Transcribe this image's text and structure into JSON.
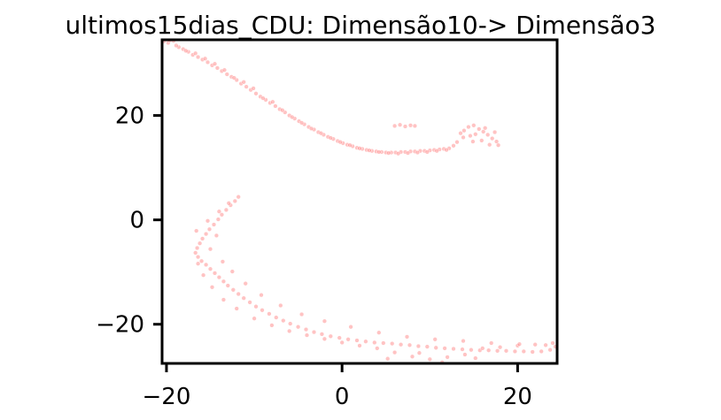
{
  "chart_data": {
    "type": "scatter",
    "title": "ultimos15dias_CDU: Dimensão10-> Dimensão3",
    "xlabel": "",
    "ylabel": "",
    "xlim": [
      -20.5,
      24.5
    ],
    "ylim": [
      -27.5,
      34.5
    ],
    "x_ticks": [
      -20,
      0,
      20
    ],
    "y_ticks": [
      -20,
      0,
      20
    ],
    "x_tick_labels": [
      "−20",
      "0",
      "20"
    ],
    "y_tick_labels": [
      "−20",
      "0",
      "20"
    ],
    "grid": false,
    "point_color": "#ff7b7b",
    "series": [
      {
        "values": [
          [
            -20.3,
            34.2
          ],
          [
            -19.8,
            33.9
          ],
          [
            -19.2,
            34.3
          ],
          [
            -18.6,
            33.1
          ],
          [
            -18.1,
            32.7
          ],
          [
            -17.5,
            32.2
          ],
          [
            -17.0,
            31.6
          ],
          [
            -16.4,
            31.2
          ],
          [
            -15.9,
            30.7
          ],
          [
            -15.3,
            30.2
          ],
          [
            -14.8,
            29.6
          ],
          [
            -14.2,
            29.1
          ],
          [
            -13.7,
            28.5
          ],
          [
            -13.1,
            27.9
          ],
          [
            -12.6,
            27.4
          ],
          [
            -12.0,
            26.8
          ],
          [
            -11.5,
            26.1
          ],
          [
            -10.9,
            25.5
          ],
          [
            -10.4,
            24.9
          ],
          [
            -9.8,
            24.2
          ],
          [
            -9.3,
            23.6
          ],
          [
            -8.7,
            23.0
          ],
          [
            -8.2,
            22.4
          ],
          [
            -7.6,
            21.8
          ],
          [
            -7.1,
            21.2
          ],
          [
            -6.5,
            20.6
          ],
          [
            -6.0,
            20.0
          ],
          [
            -5.4,
            19.4
          ],
          [
            -4.9,
            18.9
          ],
          [
            -4.3,
            18.3
          ],
          [
            -3.8,
            17.8
          ],
          [
            -3.2,
            17.3
          ],
          [
            -2.7,
            16.8
          ],
          [
            -2.1,
            16.3
          ],
          [
            -1.6,
            15.9
          ],
          [
            -1.0,
            15.5
          ],
          [
            -0.5,
            15.1
          ],
          [
            0.1,
            14.7
          ],
          [
            0.6,
            14.4
          ],
          [
            1.2,
            14.1
          ],
          [
            1.7,
            13.8
          ],
          [
            2.3,
            13.6
          ],
          [
            2.8,
            13.4
          ],
          [
            3.4,
            13.2
          ],
          [
            3.9,
            13.1
          ],
          [
            4.5,
            13.0
          ],
          [
            5.0,
            12.9
          ],
          [
            5.6,
            12.9
          ],
          [
            6.1,
            12.9
          ],
          [
            6.7,
            13.0
          ],
          [
            7.2,
            13.0
          ],
          [
            7.8,
            13.1
          ],
          [
            8.3,
            13.1
          ],
          [
            8.9,
            13.2
          ],
          [
            9.4,
            13.2
          ],
          [
            10.0,
            13.3
          ],
          [
            10.5,
            13.4
          ],
          [
            11.1,
            13.5
          ],
          [
            11.6,
            13.6
          ],
          [
            12.2,
            13.7
          ],
          [
            -19.6,
            34.4
          ],
          [
            -18.9,
            33.4
          ],
          [
            -17.8,
            32.4
          ],
          [
            -16.7,
            31.9
          ],
          [
            -15.6,
            30.9
          ],
          [
            -14.5,
            29.9
          ],
          [
            -13.4,
            28.7
          ],
          [
            -12.3,
            27.2
          ],
          [
            -11.2,
            26.4
          ],
          [
            -10.1,
            25.2
          ],
          [
            -9.0,
            23.3
          ],
          [
            -7.9,
            22.6
          ],
          [
            -6.8,
            21.0
          ],
          [
            -5.7,
            19.7
          ],
          [
            -4.6,
            18.6
          ],
          [
            -3.5,
            17.5
          ],
          [
            -2.4,
            16.6
          ],
          [
            -1.3,
            15.7
          ],
          [
            -0.2,
            14.9
          ],
          [
            0.9,
            14.3
          ],
          [
            2.0,
            13.7
          ],
          [
            3.1,
            13.3
          ],
          [
            4.2,
            13.0
          ],
          [
            5.3,
            12.8
          ],
          [
            6.4,
            12.7
          ],
          [
            7.5,
            12.8
          ],
          [
            8.6,
            12.9
          ],
          [
            9.7,
            13.0
          ],
          [
            10.8,
            13.2
          ],
          [
            11.9,
            13.4
          ],
          [
            6.0,
            18.0
          ],
          [
            6.6,
            18.2
          ],
          [
            7.2,
            17.9
          ],
          [
            7.8,
            18.1
          ],
          [
            8.3,
            18.0
          ],
          [
            13.9,
            17.1
          ],
          [
            14.4,
            17.8
          ],
          [
            15.0,
            18.1
          ],
          [
            15.6,
            17.4
          ],
          [
            16.1,
            16.9
          ],
          [
            16.6,
            16.3
          ],
          [
            17.1,
            15.6
          ],
          [
            17.6,
            15.0
          ],
          [
            15.2,
            16.4
          ],
          [
            14.6,
            16.1
          ],
          [
            13.8,
            15.8
          ],
          [
            13.1,
            14.9
          ],
          [
            12.7,
            14.2
          ],
          [
            15.9,
            15.2
          ],
          [
            16.8,
            14.4
          ],
          [
            17.4,
            16.8
          ],
          [
            16.3,
            17.6
          ],
          [
            14.9,
            15.0
          ],
          [
            13.5,
            16.6
          ],
          [
            17.8,
            14.3
          ],
          [
            -11.8,
            4.4
          ],
          [
            -12.2,
            3.6
          ],
          [
            -12.7,
            2.8
          ],
          [
            -13.2,
            1.9
          ],
          [
            -13.7,
            1.0
          ],
          [
            -14.1,
            0.1
          ],
          [
            -14.6,
            -0.9
          ],
          [
            -15.1,
            -1.8
          ],
          [
            -15.5,
            -2.7
          ],
          [
            -15.9,
            -3.6
          ],
          [
            -16.2,
            -4.5
          ],
          [
            -16.5,
            -5.4
          ],
          [
            -16.7,
            -6.3
          ],
          [
            -16.4,
            -7.1
          ],
          [
            -16.0,
            -7.9
          ],
          [
            -15.5,
            -8.6
          ],
          [
            -15.0,
            -9.4
          ],
          [
            -14.5,
            -10.2
          ],
          [
            -14.0,
            -11.0
          ],
          [
            -13.5,
            -11.8
          ],
          [
            -13.0,
            -12.6
          ],
          [
            -12.4,
            -13.4
          ],
          [
            -11.8,
            -14.2
          ],
          [
            -11.2,
            -15.0
          ],
          [
            -10.5,
            -15.8
          ],
          [
            -9.8,
            -16.6
          ],
          [
            -9.1,
            -17.3
          ],
          [
            -8.3,
            -18.0
          ],
          [
            -7.5,
            -18.7
          ],
          [
            -6.7,
            -19.3
          ],
          [
            -5.9,
            -19.9
          ],
          [
            -5.0,
            -20.5
          ],
          [
            -4.1,
            -21.0
          ],
          [
            -3.2,
            -21.5
          ],
          [
            -2.3,
            -21.9
          ],
          [
            -1.3,
            -22.3
          ],
          [
            -0.3,
            -22.6
          ],
          [
            0.7,
            -22.9
          ],
          [
            1.7,
            -23.1
          ],
          [
            2.7,
            -23.3
          ],
          [
            3.7,
            -23.5
          ],
          [
            4.7,
            -23.6
          ],
          [
            5.7,
            -23.7
          ],
          [
            6.7,
            -23.9
          ],
          [
            7.7,
            -24.0
          ],
          [
            8.7,
            -24.2
          ],
          [
            9.7,
            -24.3
          ],
          [
            10.7,
            -24.5
          ],
          [
            11.7,
            -24.6
          ],
          [
            12.7,
            -24.7
          ],
          [
            13.7,
            -24.8
          ],
          [
            14.7,
            -24.9
          ],
          [
            15.7,
            -25.0
          ],
          [
            16.7,
            -25.0
          ],
          [
            17.7,
            -25.1
          ],
          [
            18.7,
            -25.1
          ],
          [
            19.7,
            -25.2
          ],
          [
            20.7,
            -25.2
          ],
          [
            21.7,
            -25.3
          ],
          [
            22.7,
            -25.2
          ],
          [
            23.7,
            -24.9
          ],
          [
            24.3,
            -24.3
          ],
          [
            23.2,
            -24.0
          ],
          [
            24.0,
            -23.6
          ],
          [
            22.0,
            -23.9
          ],
          [
            20.0,
            -24.1
          ],
          [
            18.0,
            -24.4
          ],
          [
            16.0,
            -24.6
          ],
          [
            14.0,
            -25.8
          ],
          [
            12.0,
            -26.3
          ],
          [
            10.0,
            -26.7
          ],
          [
            8.0,
            -26.2
          ],
          [
            6.0,
            -25.4
          ],
          [
            4.0,
            -24.6
          ],
          [
            2.0,
            -24.1
          ],
          [
            0.0,
            -23.5
          ],
          [
            -2.0,
            -22.8
          ],
          [
            -4.0,
            -22.1
          ],
          [
            -6.0,
            -21.3
          ],
          [
            -8.0,
            -20.2
          ],
          [
            -10.0,
            -18.9
          ],
          [
            -12.0,
            -17.0
          ],
          [
            -13.5,
            -15.3
          ],
          [
            -14.8,
            -12.9
          ],
          [
            -15.8,
            -10.6
          ],
          [
            -16.4,
            -8.4
          ],
          [
            -16.6,
            -2.1
          ],
          [
            -15.3,
            -0.2
          ],
          [
            -14.0,
            1.6
          ],
          [
            -12.9,
            3.2
          ],
          [
            -14.3,
            -3.0
          ],
          [
            -15.0,
            -5.6
          ],
          [
            -13.6,
            -8.0
          ],
          [
            -12.5,
            -9.9
          ],
          [
            -11.0,
            -12.2
          ],
          [
            -9.2,
            -14.4
          ],
          [
            -7.0,
            -16.4
          ],
          [
            -4.6,
            -18.1
          ],
          [
            -2.0,
            -19.4
          ],
          [
            1.0,
            -20.5
          ],
          [
            4.2,
            -21.6
          ],
          [
            7.4,
            -22.4
          ],
          [
            10.6,
            -22.9
          ],
          [
            13.8,
            -23.2
          ],
          [
            17.0,
            -23.6
          ],
          [
            20.2,
            -23.8
          ],
          [
            15.2,
            -26.5
          ],
          [
            11.4,
            -27.3
          ],
          [
            8.8,
            -25.5
          ],
          [
            5.2,
            -26.6
          ]
        ]
      }
    ]
  }
}
